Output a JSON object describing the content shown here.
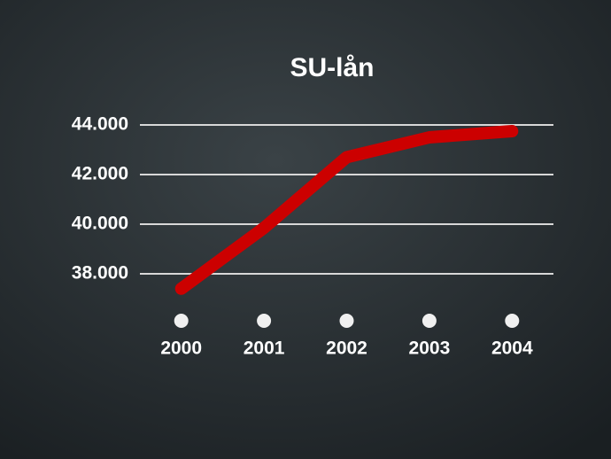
{
  "chart_data": {
    "type": "line",
    "title": "SU-lån",
    "categories": [
      "2000",
      "2001",
      "2002",
      "2003",
      "2004"
    ],
    "values": [
      37400,
      39850,
      42700,
      43500,
      43750
    ],
    "color": "#cc0000",
    "ylim": [
      36500,
      44000
    ],
    "yticks": [
      {
        "value": 38000,
        "label": "38.000"
      },
      {
        "value": 40000,
        "label": "40.000"
      },
      {
        "value": 42000,
        "label": "42.000"
      },
      {
        "value": 44000,
        "label": "44.000"
      }
    ],
    "grid": true
  }
}
